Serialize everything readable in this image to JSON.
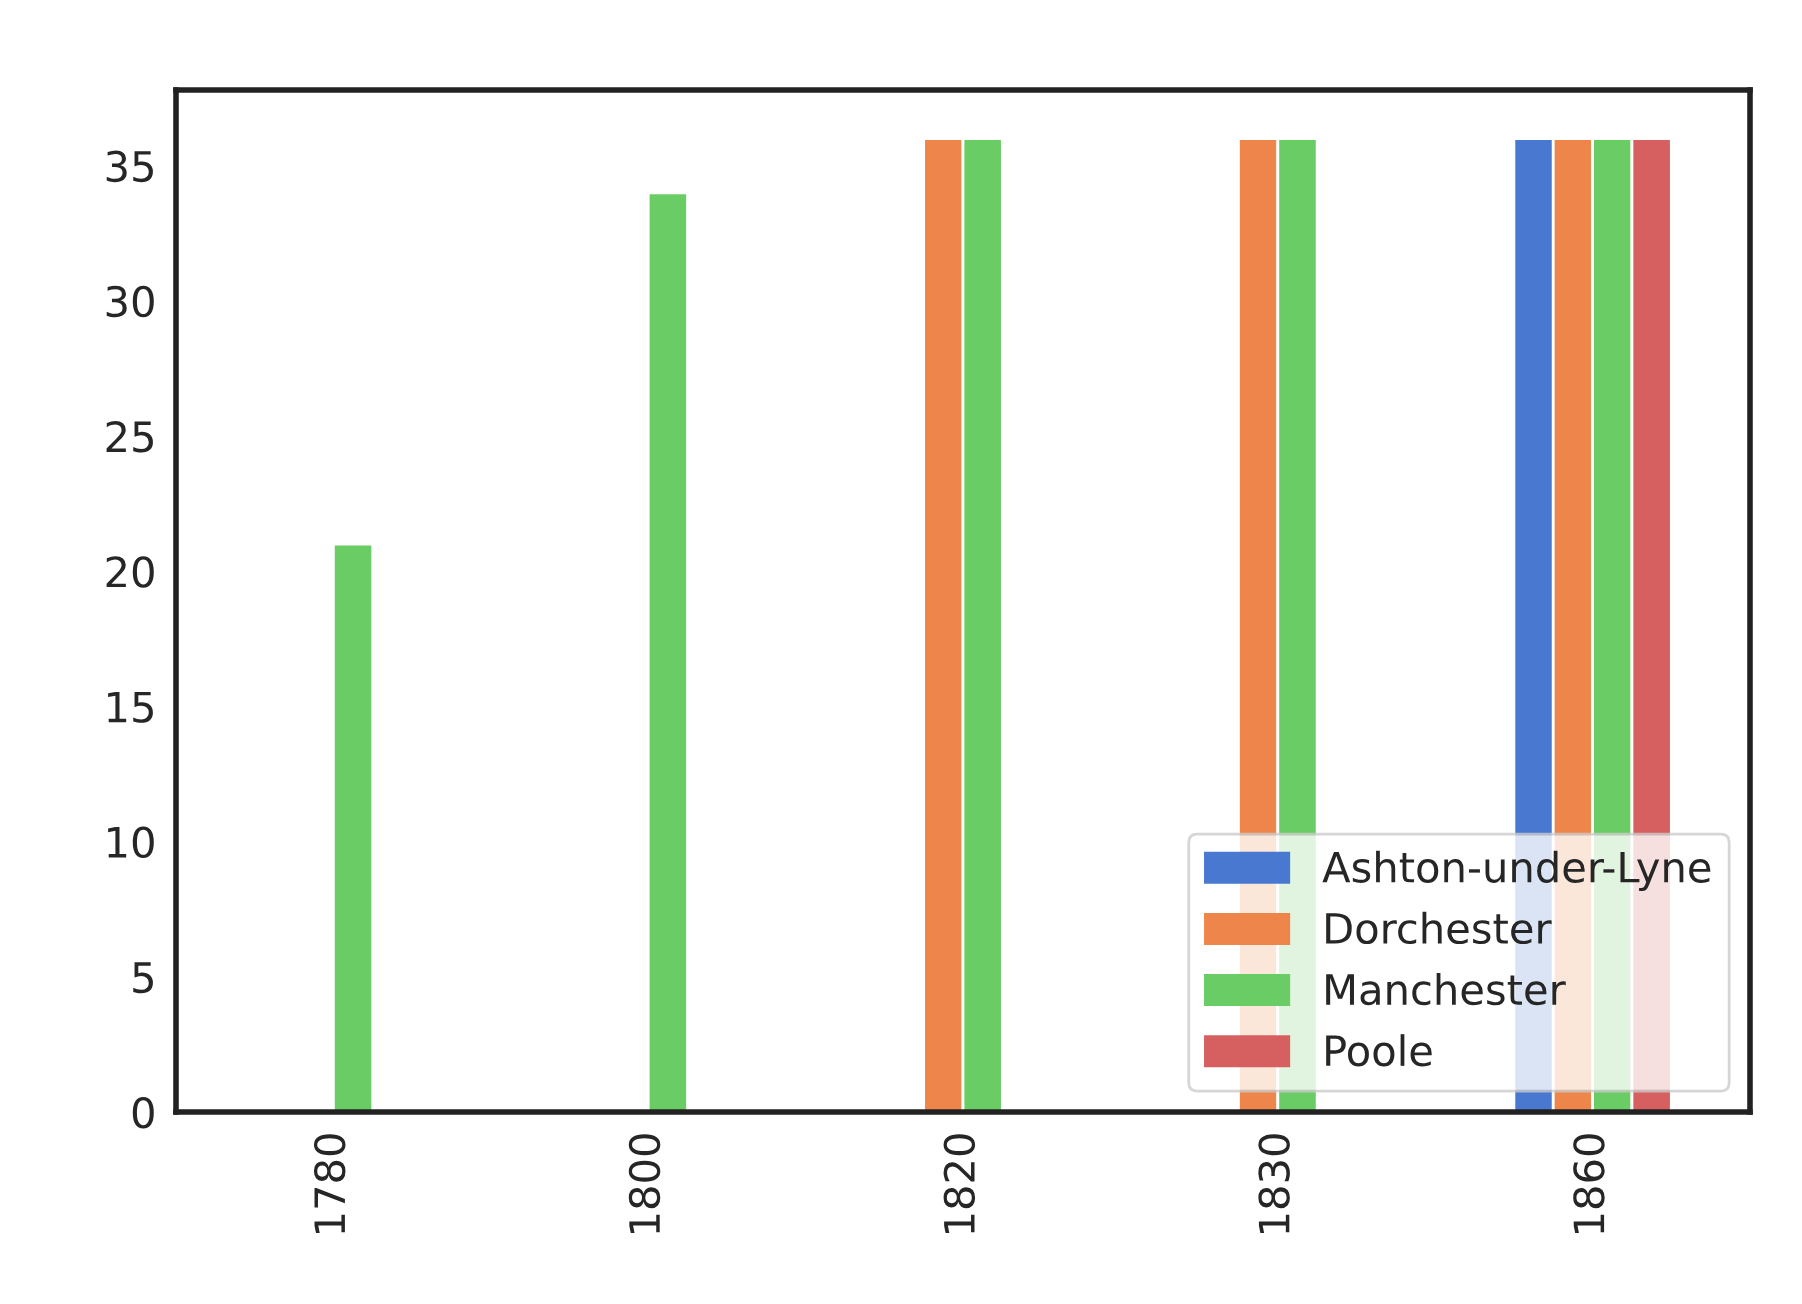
{
  "chart_data": {
    "type": "bar",
    "categories": [
      "1780",
      "1800",
      "1820",
      "1830",
      "1860"
    ],
    "series": [
      {
        "name": "Ashton-under-Lyne",
        "color": "#4878d0",
        "values": [
          null,
          null,
          null,
          null,
          36
        ]
      },
      {
        "name": "Dorchester",
        "color": "#ee854a",
        "values": [
          null,
          null,
          36,
          36,
          36
        ]
      },
      {
        "name": "Manchester",
        "color": "#6acc64",
        "values": [
          21,
          34,
          36,
          36,
          36
        ]
      },
      {
        "name": "Poole",
        "color": "#d65f5f",
        "values": [
          null,
          null,
          null,
          null,
          36
        ]
      }
    ],
    "ylim": [
      0,
      37.8
    ],
    "yticks": [
      0,
      5,
      10,
      15,
      20,
      25,
      30,
      35
    ],
    "legend": "lower right",
    "grid": false
  }
}
